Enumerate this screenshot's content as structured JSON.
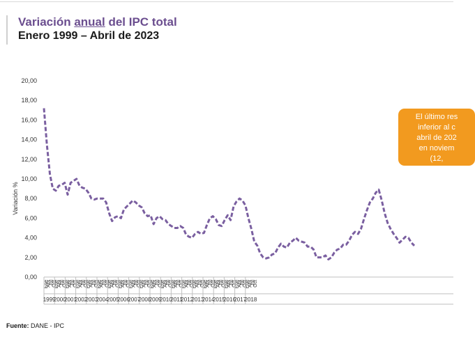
{
  "header": {
    "title_pre": "Variación ",
    "title_mid": "anual",
    "title_post": " del IPC total",
    "subtitle": "Enero 1999 – Abril de 2023"
  },
  "callout": {
    "lines": [
      "El último res",
      "inferior al c",
      "abril de 202",
      "en noviem",
      "(12,"
    ]
  },
  "source": {
    "label": "Fuente:",
    "text": " DANE - IPC"
  },
  "colors": {
    "line": "#7a5fa0",
    "title": "#6b4e8f",
    "callout": "#f29a1f"
  },
  "chart_data": {
    "type": "line",
    "ylabel": "Variación %",
    "xlabel": "",
    "ylim": [
      0,
      20
    ],
    "yticks": [
      "0,00",
      "2,00",
      "4,00",
      "6,00",
      "8,00",
      "10,00",
      "12,00",
      "14,00",
      "16,00",
      "18,00",
      "20,00"
    ],
    "quarter_labels": [
      "Ene",
      "Abr",
      "Jul",
      "Oct"
    ],
    "years": [
      "1999",
      "2000",
      "2001",
      "2002",
      "2003",
      "2004",
      "2005",
      "2006",
      "2007",
      "2008",
      "2009",
      "2010",
      "2011",
      "2012",
      "2013",
      "2014",
      "2015",
      "2016",
      "2017",
      "2018"
    ],
    "series": [
      {
        "values": [
          17.2,
          13.5,
          10.5,
          9.0,
          8.8,
          9.3,
          9.4,
          9.6,
          8.4,
          9.6,
          9.8,
          10.0,
          9.3,
          9.1,
          9.0,
          8.6,
          8.0,
          7.9,
          8.0,
          8.0,
          8.0,
          7.6,
          6.5,
          5.7,
          6.1,
          6.2,
          6.0,
          6.9,
          7.2,
          7.5,
          7.8,
          7.6,
          7.3,
          7.1,
          6.5,
          6.2,
          6.3,
          5.4,
          6.0,
          6.2,
          5.9,
          5.8,
          5.4,
          5.2,
          5.0,
          5.0,
          5.2,
          5.0,
          4.3,
          4.1,
          4.0,
          4.4,
          4.6,
          4.4,
          4.5,
          5.3,
          6.0,
          6.2,
          5.9,
          5.3,
          5.2,
          5.8,
          6.3,
          5.8,
          7.2,
          7.7,
          8.0,
          7.8,
          7.3,
          6.0,
          4.9,
          3.6,
          3.2,
          2.4,
          2.0,
          1.9,
          2.0,
          2.3,
          2.4,
          3.0,
          3.4,
          3.1,
          3.0,
          3.5,
          3.7,
          4.0,
          3.7,
          3.6,
          3.5,
          3.1,
          3.1,
          2.8,
          2.0,
          2.0,
          2.0,
          2.2,
          1.8,
          2.0,
          2.5,
          2.8,
          2.9,
          3.3,
          3.3,
          3.7,
          4.3,
          4.6,
          4.4,
          4.9,
          5.9,
          6.8,
          7.6,
          8.0,
          8.6,
          8.9,
          7.8,
          6.5,
          5.5,
          4.9,
          4.4,
          4.0,
          3.5,
          3.8,
          4.1,
          4.0,
          3.5,
          3.2
        ]
      }
    ]
  }
}
